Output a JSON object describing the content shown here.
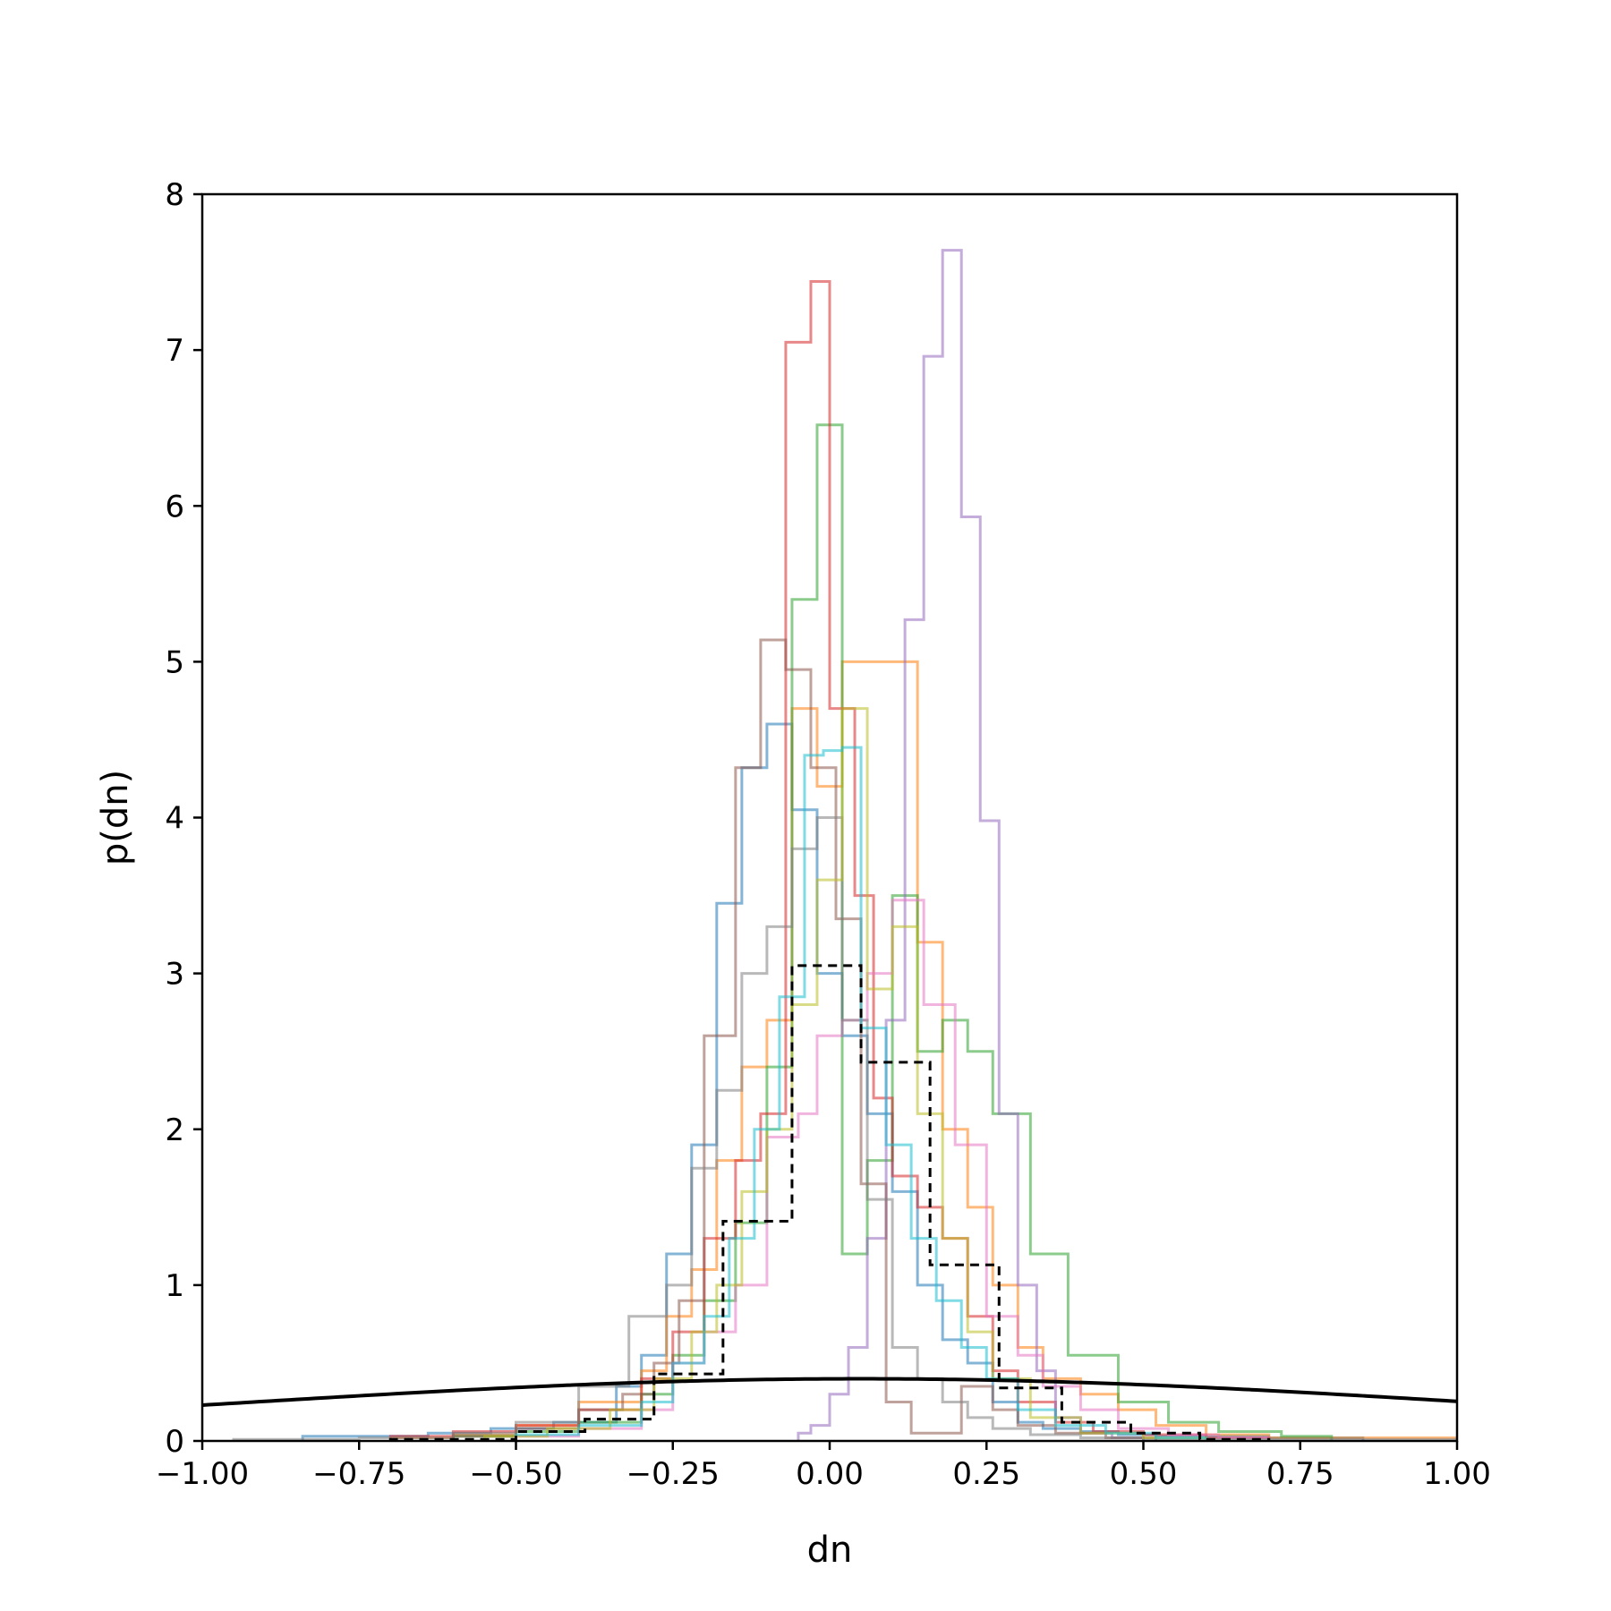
{
  "chart_data": {
    "type": "line",
    "title": "",
    "xlabel": "dn",
    "ylabel": "p(dn)",
    "xlim": [
      -1.0,
      1.0
    ],
    "ylim": [
      0,
      8
    ],
    "xticks": [
      -1.0,
      -0.75,
      -0.5,
      -0.25,
      0.0,
      0.25,
      0.5,
      0.75,
      1.0
    ],
    "xtick_labels": [
      "−1.00",
      "−0.75",
      "−0.50",
      "−0.25",
      "0.00",
      "0.25",
      "0.50",
      "0.75",
      "1.00"
    ],
    "yticks": [
      0,
      1,
      2,
      3,
      4,
      5,
      6,
      7,
      8
    ],
    "ytick_labels": [
      "0",
      "1",
      "2",
      "3",
      "4",
      "5",
      "6",
      "7",
      "8"
    ],
    "grid": false,
    "legend": "none",
    "series": [
      {
        "color": "#1f77b4",
        "style": "step",
        "opacity": 0.55,
        "edges": [
          -0.84,
          -0.74,
          -0.64,
          -0.54,
          -0.44,
          -0.34,
          -0.3,
          -0.26,
          -0.22,
          -0.18,
          -0.14,
          -0.1,
          -0.06,
          -0.02,
          0.02,
          0.06,
          0.1,
          0.14,
          0.18,
          0.22,
          0.26,
          0.3,
          0.34,
          0.4,
          0.46,
          0.52,
          0.6,
          0.7,
          0.85
        ],
        "values": [
          0.03,
          0.03,
          0.05,
          0.08,
          0.12,
          0.35,
          0.55,
          1.2,
          1.9,
          3.45,
          4.32,
          4.6,
          4.05,
          3.0,
          2.6,
          2.1,
          1.6,
          1.0,
          0.65,
          0.5,
          0.25,
          0.12,
          0.08,
          0.06,
          0.04,
          0.03,
          0.03,
          0.02
        ]
      },
      {
        "color": "#ff7f0e",
        "style": "step",
        "opacity": 0.55,
        "edges": [
          -0.7,
          -0.6,
          -0.5,
          -0.4,
          -0.3,
          -0.26,
          -0.22,
          -0.18,
          -0.14,
          -0.1,
          -0.06,
          -0.02,
          0.02,
          0.06,
          0.1,
          0.14,
          0.18,
          0.22,
          0.26,
          0.3,
          0.34,
          0.4,
          0.46,
          0.52,
          0.6,
          0.7,
          1.0
        ],
        "values": [
          0.02,
          0.04,
          0.1,
          0.25,
          0.45,
          0.8,
          1.1,
          1.8,
          2.4,
          2.7,
          4.7,
          4.2,
          5.0,
          5.0,
          5.0,
          3.2,
          2.0,
          1.5,
          1.0,
          0.6,
          0.4,
          0.3,
          0.2,
          0.1,
          0.04,
          0.02
        ]
      },
      {
        "color": "#2ca02c",
        "style": "step",
        "opacity": 0.55,
        "edges": [
          -0.6,
          -0.5,
          -0.4,
          -0.3,
          -0.25,
          -0.2,
          -0.15,
          -0.1,
          -0.06,
          -0.02,
          0.02,
          0.06,
          0.1,
          0.14,
          0.18,
          0.22,
          0.26,
          0.32,
          0.38,
          0.46,
          0.54,
          0.62,
          0.72,
          0.8
        ],
        "values": [
          0.03,
          0.06,
          0.12,
          0.3,
          0.55,
          0.9,
          1.4,
          2.4,
          5.4,
          6.52,
          1.2,
          1.8,
          3.5,
          2.5,
          2.7,
          2.5,
          2.1,
          1.2,
          0.55,
          0.25,
          0.12,
          0.06,
          0.03
        ]
      },
      {
        "color": "#d62728",
        "style": "step",
        "opacity": 0.55,
        "edges": [
          -0.7,
          -0.6,
          -0.5,
          -0.4,
          -0.3,
          -0.25,
          -0.2,
          -0.15,
          -0.11,
          -0.07,
          -0.03,
          0.0,
          0.04,
          0.07,
          0.1,
          0.14,
          0.18,
          0.22,
          0.26,
          0.3,
          0.36,
          0.42,
          0.5,
          0.6,
          0.7
        ],
        "values": [
          0.03,
          0.06,
          0.1,
          0.2,
          0.4,
          0.7,
          1.3,
          1.8,
          2.1,
          7.05,
          7.44,
          4.7,
          3.5,
          2.2,
          1.7,
          1.5,
          1.3,
          0.8,
          0.45,
          0.25,
          0.12,
          0.06,
          0.04,
          0.02
        ]
      },
      {
        "color": "#9467bd",
        "style": "step",
        "opacity": 0.55,
        "edges": [
          -0.05,
          -0.03,
          0.0,
          0.03,
          0.06,
          0.09,
          0.12,
          0.15,
          0.18,
          0.21,
          0.24,
          0.27,
          0.3,
          0.33,
          0.36,
          0.4,
          0.45,
          0.5
        ],
        "values": [
          0.05,
          0.1,
          0.3,
          0.6,
          1.3,
          2.7,
          5.27,
          6.96,
          7.64,
          5.93,
          3.98,
          2.1,
          1.0,
          0.45,
          0.15,
          0.05,
          0.02
        ]
      },
      {
        "color": "#8c564b",
        "style": "step",
        "opacity": 0.55,
        "edges": [
          -0.6,
          -0.5,
          -0.4,
          -0.33,
          -0.28,
          -0.24,
          -0.2,
          -0.15,
          -0.11,
          -0.07,
          -0.03,
          0.01,
          0.05,
          0.09,
          0.13,
          0.17,
          0.21,
          0.26,
          0.3,
          0.36,
          0.44,
          0.52
        ],
        "values": [
          0.03,
          0.08,
          0.2,
          0.3,
          0.5,
          0.9,
          2.6,
          4.32,
          5.14,
          4.95,
          4.32,
          3.35,
          1.65,
          0.25,
          0.05,
          0.05,
          0.35,
          0.2,
          0.1,
          0.05,
          0.02
        ]
      },
      {
        "color": "#e377c2",
        "style": "step",
        "opacity": 0.55,
        "edges": [
          -0.5,
          -0.4,
          -0.3,
          -0.25,
          -0.2,
          -0.15,
          -0.1,
          -0.05,
          -0.02,
          0.02,
          0.06,
          0.1,
          0.15,
          0.2,
          0.25,
          0.3,
          0.34,
          0.4,
          0.46,
          0.54,
          0.62,
          0.7
        ],
        "values": [
          0.03,
          0.08,
          0.2,
          0.5,
          0.7,
          1.0,
          1.95,
          2.1,
          2.6,
          2.7,
          3.0,
          3.47,
          2.8,
          1.9,
          0.8,
          0.55,
          0.35,
          0.2,
          0.08,
          0.04,
          0.02
        ]
      },
      {
        "color": "#7f7f7f",
        "style": "step",
        "opacity": 0.55,
        "edges": [
          -0.95,
          -0.75,
          -0.6,
          -0.5,
          -0.4,
          -0.32,
          -0.26,
          -0.22,
          -0.18,
          -0.14,
          -0.1,
          -0.06,
          -0.02,
          0.02,
          0.06,
          0.1,
          0.14,
          0.18,
          0.22,
          0.26,
          0.32,
          0.4,
          0.5,
          0.7,
          1.0
        ],
        "values": [
          0.01,
          0.02,
          0.05,
          0.12,
          0.35,
          0.8,
          1.0,
          1.75,
          2.25,
          3.0,
          3.3,
          3.8,
          4.0,
          2.7,
          1.55,
          0.6,
          0.4,
          0.25,
          0.15,
          0.08,
          0.04,
          0.02,
          0.01,
          0.01
        ]
      },
      {
        "color": "#bcbd22",
        "style": "step",
        "opacity": 0.55,
        "edges": [
          -0.55,
          -0.45,
          -0.35,
          -0.28,
          -0.22,
          -0.18,
          -0.14,
          -0.1,
          -0.06,
          -0.02,
          0.02,
          0.06,
          0.1,
          0.14,
          0.18,
          0.22,
          0.26,
          0.32,
          0.4,
          0.5,
          0.6
        ],
        "values": [
          0.03,
          0.08,
          0.2,
          0.4,
          0.7,
          1.0,
          1.6,
          2.0,
          2.8,
          3.6,
          4.7,
          2.9,
          3.3,
          2.1,
          1.3,
          0.7,
          0.4,
          0.15,
          0.05,
          0.02
        ]
      },
      {
        "color": "#17becf",
        "style": "step",
        "opacity": 0.55,
        "edges": [
          -0.5,
          -0.4,
          -0.3,
          -0.25,
          -0.2,
          -0.16,
          -0.12,
          -0.08,
          -0.04,
          -0.01,
          0.02,
          0.05,
          0.09,
          0.13,
          0.17,
          0.21,
          0.25,
          0.3,
          0.36,
          0.44,
          0.52,
          0.6
        ],
        "values": [
          0.04,
          0.1,
          0.25,
          0.5,
          0.8,
          1.3,
          2.0,
          2.85,
          4.4,
          4.43,
          4.45,
          2.65,
          1.9,
          1.3,
          0.9,
          0.6,
          0.4,
          0.2,
          0.1,
          0.05,
          0.02
        ]
      },
      {
        "color": "#000000",
        "style": "step",
        "dash": true,
        "opacity": 1.0,
        "edges": [
          -0.7,
          -0.5,
          -0.39,
          -0.28,
          -0.17,
          -0.06,
          0.05,
          0.16,
          0.27,
          0.37,
          0.48,
          0.59,
          0.7
        ],
        "values": [
          0.01,
          0.06,
          0.14,
          0.43,
          1.41,
          3.05,
          2.43,
          1.13,
          0.34,
          0.12,
          0.05,
          0.01
        ]
      },
      {
        "color": "#000000",
        "style": "curve",
        "opacity": 1.0,
        "function": "normal_pdf",
        "mu": 0.05,
        "sigma": 1.0
      }
    ]
  }
}
